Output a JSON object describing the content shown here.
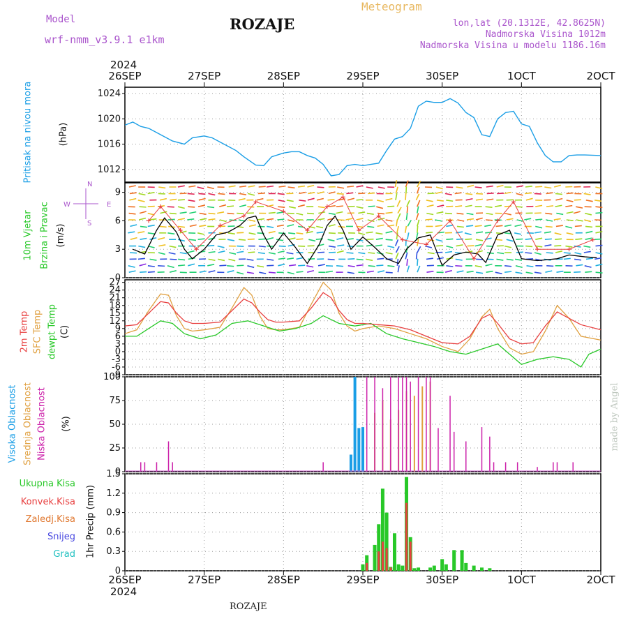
{
  "header": {
    "model_label": "Model",
    "model_name": "wrf-nmm_v3.9.1  e1km",
    "station": "ROZAJE",
    "product": "Meteogram",
    "lonlat": "lon,lat (20.1312E, 42.8625N)",
    "elevation": "Nadmorska Visina 1012m",
    "model_elevation": "Nadmorska Visina u modelu 1186.16m",
    "credit": "made by Angel",
    "footer_station": "ROZAJE",
    "year_top": "2024",
    "year_bottom": "2024"
  },
  "colors": {
    "pressure": "#1a9ee6",
    "temp2m": "#e84040",
    "sfc": "#e0a040",
    "dew": "#28c828",
    "high_cloud": "#1a9ee6",
    "mid_cloud": "#e0a040",
    "low_cloud": "#cc22aa",
    "precip_total": "#28c828",
    "precip_conv": "#e84040",
    "precip_grid": "#e07830"
  },
  "chart_data": [
    {
      "id": "pressure",
      "type": "line",
      "ylabel": "Pritisak na nivou mora",
      "unit": "(hPa)",
      "ylim": [
        1010,
        1025
      ],
      "yticks": [
        1012,
        1016,
        1020,
        1024
      ],
      "x_categories": [
        "26SEP",
        "27SEP",
        "28SEP",
        "29SEP",
        "30SEP",
        "1OCT",
        "2OCT"
      ],
      "series": [
        {
          "x": [
            0,
            0.1,
            0.2,
            0.3,
            0.45,
            0.6,
            0.75,
            0.85,
            1.0,
            1.1,
            1.25,
            1.4,
            1.5,
            1.65,
            1.75,
            1.85,
            2.0,
            2.1,
            2.2,
            2.3,
            2.4,
            2.5,
            2.6,
            2.7,
            2.8,
            2.9,
            3.0,
            3.1,
            3.2,
            3.3,
            3.4,
            3.5,
            3.6,
            3.7,
            3.8,
            3.9,
            4.0,
            4.1,
            4.2,
            4.3,
            4.4,
            4.5,
            4.6,
            4.7,
            4.8,
            4.9,
            5.0,
            5.1,
            5.2,
            5.3,
            5.4,
            5.5,
            5.6,
            5.7,
            5.8,
            6.0
          ],
          "values": [
            1019,
            1019.5,
            1018.8,
            1018.5,
            1017.5,
            1016.5,
            1016,
            1017,
            1017.3,
            1017,
            1016,
            1015,
            1014,
            1012.7,
            1012.6,
            1014,
            1014.6,
            1014.8,
            1014.8,
            1014.2,
            1013.8,
            1012.8,
            1011,
            1011.2,
            1012.6,
            1012.8,
            1012.6,
            1012.8,
            1013,
            1015,
            1016.8,
            1017.2,
            1018.5,
            1022,
            1022.8,
            1022.6,
            1022.6,
            1023.2,
            1022.5,
            1021,
            1020.2,
            1017.5,
            1017.2,
            1020,
            1021,
            1021.2,
            1019.2,
            1018.8,
            1016.2,
            1014.2,
            1013.2,
            1013.2,
            1014.2,
            1014.3,
            1014.3,
            1014.2
          ]
        }
      ]
    },
    {
      "id": "wind",
      "type": "line",
      "ylabel": "10m Vjetar Brzina i Pravac",
      "unit": "(m/s)",
      "compass": {
        "n": "N",
        "s": "S",
        "e": "E",
        "w": "W"
      },
      "ylim": [
        0,
        10
      ],
      "yticks": [
        0,
        3,
        6,
        9
      ],
      "series": [
        {
          "name": "speed",
          "x": [
            0.1,
            0.25,
            0.4,
            0.5,
            0.65,
            0.75,
            0.85,
            1.0,
            1.15,
            1.3,
            1.45,
            1.55,
            1.65,
            1.75,
            1.85,
            2.0,
            2.15,
            2.3,
            2.45,
            2.55,
            2.65,
            2.75,
            2.85,
            3.0,
            3.15,
            3.3,
            3.45,
            3.55,
            3.7,
            3.85,
            4.0,
            4.15,
            4.3,
            4.45,
            4.55,
            4.7,
            4.85,
            5.0,
            5.2,
            5.45,
            5.6,
            5.8,
            5.95
          ],
          "values": [
            3,
            2.5,
            5,
            6.3,
            4.8,
            3,
            2,
            3,
            4.5,
            4.8,
            5.5,
            6.3,
            6.5,
            4.5,
            3,
            4.7,
            3.2,
            1.5,
            3.5,
            5.5,
            6.5,
            5,
            3,
            4.3,
            3.2,
            2,
            1.5,
            3,
            4.2,
            4.5,
            1.3,
            2.4,
            2.7,
            2.5,
            1.6,
            4.5,
            5,
            2,
            1.8,
            2,
            2.4,
            2.2,
            2.1
          ]
        },
        {
          "name": "gust",
          "x": [
            0.3,
            0.45,
            0.7,
            0.9,
            1.2,
            1.5,
            1.65,
            2.0,
            2.3,
            2.55,
            2.75,
            2.95,
            3.2,
            3.5,
            3.8,
            4.1,
            4.4,
            4.7,
            4.9,
            5.2,
            5.6,
            5.9
          ],
          "values": [
            6,
            7.5,
            5,
            3,
            5.5,
            6.5,
            8,
            7,
            5,
            7.5,
            8.5,
            5,
            6.5,
            4,
            3.5,
            6,
            2,
            6,
            8,
            3,
            3,
            4
          ]
        }
      ]
    },
    {
      "id": "temperature",
      "type": "line",
      "ylabel": "2m Temp / SFC Temp / dewpt Temp",
      "unit": "(C)",
      "ylim": [
        -9,
        28
      ],
      "yticks": [
        -9,
        -6,
        -3,
        0,
        3,
        6,
        9,
        12,
        15,
        18,
        21,
        24,
        27
      ],
      "series": [
        {
          "name": "2m Temp",
          "x": [
            0,
            0.15,
            0.3,
            0.45,
            0.55,
            0.65,
            0.75,
            0.85,
            1.0,
            1.2,
            1.35,
            1.5,
            1.6,
            1.7,
            1.8,
            1.9,
            2.0,
            2.2,
            2.35,
            2.5,
            2.6,
            2.7,
            2.8,
            2.9,
            3.0,
            3.2,
            3.4,
            3.6,
            3.8,
            4.0,
            4.2,
            4.35,
            4.5,
            4.6,
            4.7,
            4.85,
            5.0,
            5.15,
            5.3,
            5.45,
            5.6,
            5.75,
            6.0
          ],
          "values": [
            10,
            10.5,
            15,
            19.5,
            19,
            15,
            12,
            11,
            11,
            11.5,
            16,
            20.5,
            19,
            15.5,
            12.5,
            11.5,
            11.5,
            12,
            17,
            23,
            21,
            16,
            12.5,
            11,
            11,
            10.5,
            10,
            8.5,
            6,
            3.5,
            3,
            6,
            13,
            14.5,
            11,
            5,
            3,
            3.5,
            10,
            15.5,
            13,
            10.5,
            8.5
          ]
        },
        {
          "name": "SFC Temp",
          "x": [
            0,
            0.15,
            0.3,
            0.45,
            0.55,
            0.65,
            0.75,
            0.85,
            1.0,
            1.2,
            1.35,
            1.5,
            1.6,
            1.7,
            1.8,
            1.9,
            2.0,
            2.2,
            2.35,
            2.5,
            2.6,
            2.7,
            2.8,
            2.9,
            3.0,
            3.2,
            3.4,
            3.6,
            3.8,
            4.0,
            4.2,
            4.35,
            4.5,
            4.6,
            4.7,
            4.85,
            5.0,
            5.15,
            5.3,
            5.45,
            5.6,
            5.75,
            6.0
          ],
          "values": [
            7,
            8.5,
            16,
            22.5,
            22,
            14,
            9,
            8,
            8.5,
            9.5,
            17,
            25,
            22,
            14,
            9,
            8.5,
            8.5,
            9.5,
            18.5,
            27,
            24,
            15,
            10,
            8,
            9,
            10,
            9,
            7,
            5,
            2,
            0,
            5,
            13.5,
            16.5,
            9,
            1.5,
            -1,
            0,
            8,
            18,
            13,
            6,
            4.5
          ]
        },
        {
          "name": "dewpt Temp",
          "x": [
            0,
            0.15,
            0.3,
            0.45,
            0.6,
            0.75,
            0.95,
            1.15,
            1.35,
            1.55,
            1.75,
            1.95,
            2.15,
            2.35,
            2.5,
            2.7,
            2.9,
            3.1,
            3.3,
            3.5,
            3.7,
            3.9,
            4.1,
            4.3,
            4.5,
            4.7,
            4.85,
            5.0,
            5.2,
            5.4,
            5.6,
            5.75,
            5.85,
            6.0
          ],
          "values": [
            6,
            6,
            9,
            12,
            11,
            7,
            5,
            6.5,
            11,
            12,
            10,
            8,
            9,
            11,
            14,
            11,
            10,
            11,
            7,
            5,
            3.5,
            2,
            0,
            -1,
            1,
            3,
            -1,
            -5,
            -3,
            -2,
            -3,
            -6,
            -1,
            1
          ]
        }
      ]
    },
    {
      "id": "clouds",
      "type": "bar",
      "ylabel": "Visoka Oblacnost / Srednja Oblacnost / Niska Oblacnost",
      "unit": "(%)",
      "ylim": [
        0,
        100
      ],
      "yticks": [
        0,
        25,
        50,
        75,
        100
      ],
      "series": [
        {
          "name": "Visoka Oblacnost",
          "x": [
            2.85,
            2.9,
            2.95,
            3.0
          ],
          "values": [
            18,
            100,
            46,
            47
          ]
        },
        {
          "name": "Srednja Oblacnost",
          "x": [
            3.15,
            3.25,
            3.35,
            3.45,
            3.55,
            3.65,
            3.75,
            3.85
          ],
          "values": [
            62,
            75,
            55,
            65,
            85,
            80,
            90,
            95
          ]
        },
        {
          "name": "Niska Oblacnost",
          "x": [
            0.2,
            0.25,
            0.4,
            0.55,
            0.6,
            2.5,
            3.05,
            3.15,
            3.25,
            3.35,
            3.45,
            3.5,
            3.55,
            3.6,
            3.7,
            3.8,
            3.85,
            3.95,
            4.1,
            4.15,
            4.3,
            4.5,
            4.6,
            4.65,
            4.8,
            4.95,
            5.2,
            5.4,
            5.45,
            5.65
          ],
          "values": [
            10,
            10,
            10,
            32,
            10,
            10,
            100,
            100,
            88,
            100,
            100,
            100,
            100,
            95,
            100,
            100,
            100,
            46,
            80,
            42,
            32,
            47,
            37,
            10,
            10,
            10,
            5,
            10,
            10,
            10
          ]
        }
      ]
    },
    {
      "id": "precipitation",
      "type": "bar",
      "ylabel": "1hr Precip",
      "unit": "(mm)",
      "ylim": [
        0,
        1.5
      ],
      "yticks": [
        0,
        0.3,
        0.6,
        0.9,
        1.2,
        1.5
      ],
      "legend": [
        "Ukupna Kisa",
        "Konvek.Kisa",
        "Zaledj.Kisa",
        "Snijeg",
        "Grad"
      ],
      "series": [
        {
          "name": "Ukupna Kisa",
          "x": [
            3.0,
            3.05,
            3.15,
            3.2,
            3.25,
            3.3,
            3.35,
            3.4,
            3.45,
            3.5,
            3.55,
            3.6,
            3.65,
            3.7,
            3.85,
            3.9,
            4.0,
            4.05,
            4.15,
            4.25,
            4.3,
            4.4,
            4.5,
            4.6
          ],
          "values": [
            0.1,
            0.24,
            0.4,
            0.72,
            1.27,
            0.9,
            0.06,
            0.58,
            0.1,
            0.08,
            1.45,
            0.52,
            0.04,
            0.05,
            0.05,
            0.08,
            0.18,
            0.1,
            0.32,
            0.32,
            0.12,
            0.08,
            0.05,
            0.04
          ]
        },
        {
          "name": "Konvek.Kisa",
          "x": [
            3.05,
            3.2,
            3.25,
            3.3,
            3.35,
            3.55,
            3.6
          ],
          "values": [
            0.12,
            0.3,
            0.45,
            0.35,
            0.05,
            1.05,
            0.45
          ]
        }
      ]
    }
  ]
}
